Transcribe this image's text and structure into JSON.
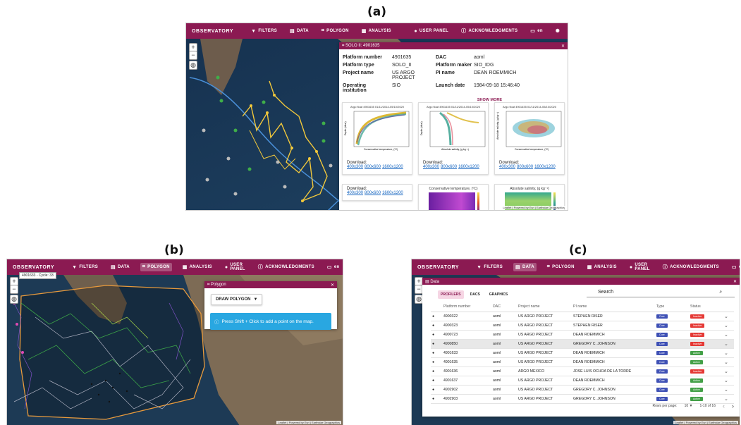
{
  "labels": {
    "a": "(a)",
    "b": "(b)",
    "c": "(c)"
  },
  "nav": {
    "brand": "OBSERVATORY",
    "filters": "FILTERS",
    "data": "DATA",
    "polygon": "POLYGON",
    "analysis": "ANALYSIS",
    "user_panel": "USER PANEL",
    "acknowledgments": "ACKNOWLEDGMENTS",
    "lang": "en"
  },
  "colors": {
    "brand": "#8b1a52",
    "track": "#f2c83b"
  },
  "panel_a": {
    "window_title": "SOLO II: 4901635",
    "fields": [
      {
        "k": "Platform number",
        "v": "4901635",
        "k2": "DAC",
        "v2": "aoml"
      },
      {
        "k": "Platform type",
        "v": "SOLO_II",
        "k2": "Platform maker",
        "v2": "SIO_IDG"
      },
      {
        "k": "Project name",
        "v": "US ARGO PROJECT",
        "k2": "PI name",
        "v2": "DEAN ROEMMICH"
      },
      {
        "k": "Operating institution",
        "v": "SIO",
        "k2": "Launch date",
        "v2": "1984-09-18 15:46:40"
      }
    ],
    "show_more": "SHOW MORE",
    "plot_titles": [
      "Argo float 4901635 01/11/2014-05/10/2020",
      "Argo float 4901635 01/11/2014-05/10/2020",
      "Argo float 4901635 01/11/2014-05/10/2020"
    ],
    "plot_y": [
      "Depth (dbar)",
      "Depth (dbar)",
      "Absolute salinity, (g kg⁻¹)"
    ],
    "plot_x": [
      "Conservative temperature, (ºC)",
      "Absolute salinity, (g kg⁻¹)",
      "Conservative temperature, (ºC)"
    ],
    "download": "Download:",
    "sizes": [
      "400x300",
      "800x600",
      "1600x1200"
    ],
    "lower_titles": [
      "Conservative temperature, (ºC)",
      "Absolute salinity, (g kg⁻¹)"
    ],
    "attribution": "Leaflet | Powered by Esri | Earthstar Geographics"
  },
  "panel_b": {
    "tooltip": "4901633 - Cycle: 33",
    "window_title": "Polygon",
    "draw_button": "DRAW POLYGON",
    "hint": "Press Shift + Click to add a point on the map.",
    "attribution": "Leaflet | Powered by Esri | Earthstar Geographics"
  },
  "panel_c": {
    "window_title": "Data",
    "tabs": [
      "PROFILERS",
      "DACS",
      "GRAPHICS"
    ],
    "search_label": "Search",
    "headers": [
      "Platform number",
      "DAC",
      "Project name",
      "PI name",
      "Type",
      "Status"
    ],
    "rows": [
      {
        "num": "4900322",
        "dac": "aoml",
        "project": "US ARGO PROJECT",
        "pi": "STEPHEN RISER",
        "type": "Core",
        "status": "Inactive"
      },
      {
        "num": "4900323",
        "dac": "aoml",
        "project": "US ARGO PROJECT",
        "pi": "STEPHEN RISER",
        "type": "Core",
        "status": "Inactive"
      },
      {
        "num": "4900723",
        "dac": "aoml",
        "project": "US ARGO PROJECT",
        "pi": "DEAN ROEMMICH",
        "type": "Core",
        "status": "Inactive"
      },
      {
        "num": "4900850",
        "dac": "aoml",
        "project": "US ARGO PROJECT",
        "pi": "GREGORY C. JOHNSON",
        "type": "Core",
        "status": "Inactive"
      },
      {
        "num": "4901633",
        "dac": "aoml",
        "project": "US ARGO PROJECT",
        "pi": "DEAN ROEMMICH",
        "type": "Core",
        "status": "Active"
      },
      {
        "num": "4901635",
        "dac": "aoml",
        "project": "US ARGO PROJECT",
        "pi": "DEAN ROEMMICH",
        "type": "Core",
        "status": "Active"
      },
      {
        "num": "4901636",
        "dac": "aoml",
        "project": "ARGO MEXICO",
        "pi": "JOSE LUIS OCHOA DE LA TORRE",
        "type": "Core",
        "status": "Inactive"
      },
      {
        "num": "4901637",
        "dac": "aoml",
        "project": "US ARGO PROJECT",
        "pi": "DEAN ROEMMICH",
        "type": "Core",
        "status": "Active"
      },
      {
        "num": "4902902",
        "dac": "aoml",
        "project": "US ARGO PROJECT",
        "pi": "GREGORY C. JOHNSON",
        "type": "Core",
        "status": "Active"
      },
      {
        "num": "4902903",
        "dac": "aoml",
        "project": "US ARGO PROJECT",
        "pi": "GREGORY C. JOHNSON",
        "type": "Core",
        "status": "Active"
      }
    ],
    "rows_per_page_label": "Rows per page:",
    "rows_per_page": "10",
    "range": "1-10 of 16",
    "attribution": "Leaflet | Powered by Esri | Earthstar Geographics"
  }
}
